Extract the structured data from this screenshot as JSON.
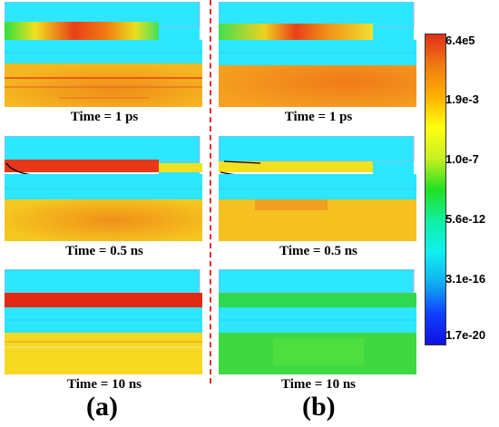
{
  "colors": {
    "device_cyan": "#2de6ff",
    "metal_outline": "#b8a8d8",
    "divider": "#e53030"
  },
  "columns": {
    "a": {
      "label": "(a)",
      "panels": [
        {
          "time": "Time = 1 ps"
        },
        {
          "time": "Time = 0.5 ns"
        },
        {
          "time": "Time = 10 ns"
        }
      ]
    },
    "b": {
      "label": "(b)",
      "panels": [
        {
          "time": "Time = 1 ps"
        },
        {
          "time": "Time = 0.5 ns"
        },
        {
          "time": "Time = 10 ns"
        }
      ]
    }
  },
  "colorbar": {
    "stops": [
      "#e0301a",
      "#f07a10",
      "#ffb000",
      "#ffff10",
      "#c8f020",
      "#20e020",
      "#10f0a0",
      "#10f0f0",
      "#10b0f0",
      "#1040ff",
      "#1010e0"
    ],
    "ticks": [
      "6.4e5",
      "1.9e-3",
      "1.0e-7",
      "5.6e-12",
      "3.1e-16",
      "1.7e-20"
    ]
  }
}
